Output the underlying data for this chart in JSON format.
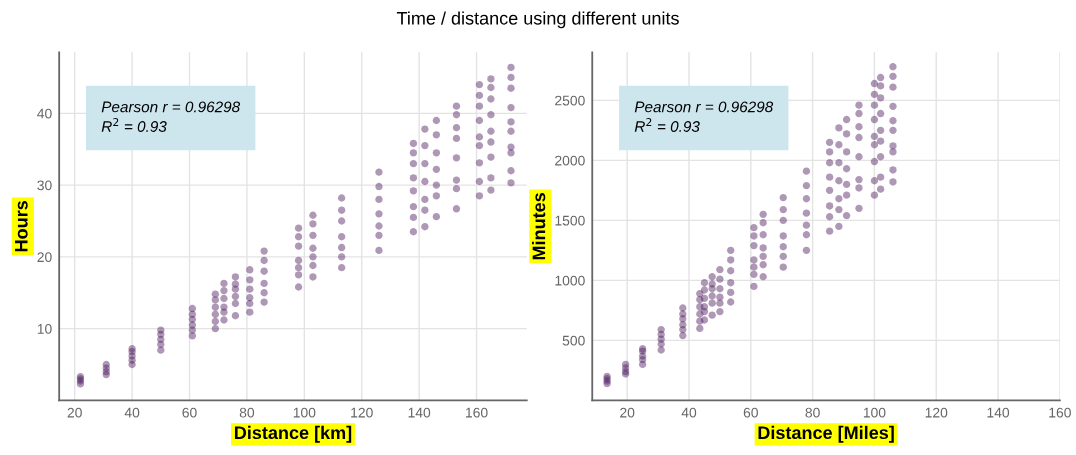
{
  "chart_data": [
    {
      "type": "scatter",
      "title": "Time / distance using different units",
      "xlabel": "Distance [km]",
      "ylabel": "Hours",
      "xlim": [
        14.6,
        177.5
      ],
      "ylim": [
        0,
        48.5
      ],
      "xticks": [
        20,
        40,
        60,
        80,
        100,
        120,
        140,
        160
      ],
      "yticks": [
        10,
        20,
        30,
        40
      ],
      "grid": true,
      "annotations": [
        "Pearson r = 0.96298\nR$^{2}$ = 0.93"
      ],
      "series": [
        {
          "color": "#4b1a5e",
          "x": [
            22,
            22,
            22,
            22,
            31,
            31,
            31,
            31,
            40,
            40,
            40,
            40,
            40,
            50,
            50,
            50,
            50,
            50,
            61,
            61,
            61,
            61,
            61,
            61,
            69,
            69,
            69,
            69,
            69,
            69,
            72,
            72,
            72,
            72,
            72,
            72,
            76,
            76,
            76,
            76,
            76,
            76,
            81,
            81,
            81,
            81,
            81,
            81,
            86,
            86,
            86,
            86,
            86,
            86,
            98,
            98,
            98,
            98,
            98,
            98,
            98,
            103,
            103,
            103,
            103,
            103,
            103,
            103,
            113,
            113,
            113,
            113,
            113,
            113,
            113,
            126,
            126,
            126,
            126,
            126,
            126,
            126,
            138,
            138,
            138,
            138,
            138,
            138,
            138,
            138,
            142,
            142,
            142,
            142,
            142,
            142,
            142,
            146,
            146,
            146,
            146,
            146,
            146,
            146,
            153,
            153,
            153,
            153,
            153,
            153,
            153,
            153,
            161,
            161,
            161,
            161,
            161,
            161,
            161,
            161,
            161,
            165,
            165,
            165,
            165,
            165,
            165,
            165,
            165,
            165,
            172,
            172,
            172,
            172,
            172,
            172,
            172,
            172,
            172,
            172
          ],
          "values": [
            2.3,
            2.7,
            3.0,
            3.3,
            3.6,
            4.0,
            4.5,
            5.0,
            5.0,
            5.6,
            6.2,
            6.8,
            7.2,
            7.0,
            7.8,
            8.5,
            9.2,
            9.8,
            9.0,
            9.8,
            10.5,
            11.3,
            12.0,
            12.8,
            10.0,
            11.0,
            12.0,
            13.0,
            14.0,
            14.8,
            11.2,
            12.3,
            13.0,
            14.2,
            15.3,
            16.3,
            11.8,
            13.5,
            14.5,
            15.5,
            16.2,
            17.2,
            12.3,
            13.5,
            14.3,
            15.5,
            16.8,
            18.2,
            13.7,
            15.0,
            16.3,
            18.0,
            19.5,
            20.8,
            15.8,
            17.5,
            18.5,
            19.5,
            21.5,
            22.8,
            24.0,
            17.2,
            18.8,
            20.0,
            21.2,
            23.0,
            24.6,
            25.8,
            18.5,
            20.0,
            21.3,
            22.8,
            25.0,
            26.5,
            28.2,
            20.9,
            23.0,
            24.3,
            26.0,
            28.0,
            29.8,
            31.8,
            23.5,
            25.5,
            27.0,
            29.2,
            31.0,
            33.0,
            34.5,
            35.8,
            24.2,
            26.5,
            28.0,
            30.5,
            33.0,
            35.5,
            37.8,
            25.6,
            28.5,
            30.0,
            32.2,
            34.5,
            37.0,
            39.0,
            26.7,
            29.5,
            30.7,
            33.8,
            36.5,
            38.0,
            39.8,
            41.0,
            28.5,
            30.5,
            33.1,
            35.5,
            36.7,
            39.0,
            41.0,
            42.5,
            44.0,
            29.3,
            31.0,
            33.9,
            36.0,
            37.5,
            39.8,
            42.0,
            43.6,
            44.8,
            30.3,
            32.0,
            34.5,
            35.3,
            37.5,
            38.8,
            40.8,
            43.5,
            45.0,
            46.4
          ]
        }
      ]
    },
    {
      "type": "scatter",
      "xlabel": "Distance [Miles]",
      "ylabel": "Minutes",
      "xlim": [
        8.7,
        160
      ],
      "ylim": [
        0,
        2900
      ],
      "xticks": [
        20,
        40,
        60,
        80,
        100,
        120,
        140,
        160
      ],
      "yticks": [
        500,
        1000,
        1500,
        2000,
        2500
      ],
      "grid": true,
      "annotations": [
        "Pearson r = 0.96298\nR$^{2}$ = 0.93"
      ],
      "series": [
        {
          "color": "#4b1a5e",
          "x": [
            13.5,
            13.5,
            13.5,
            13.5,
            19.5,
            19.5,
            19.5,
            19.5,
            25,
            25,
            25,
            25,
            25,
            31,
            31,
            31,
            31,
            31,
            38,
            38,
            38,
            38,
            38,
            38,
            43.5,
            43.5,
            43.5,
            43.5,
            43.5,
            43.5,
            45,
            45,
            45,
            45,
            45,
            45,
            47.5,
            47.5,
            47.5,
            47.5,
            47.5,
            47.5,
            50,
            50,
            50,
            50,
            50,
            50,
            53.5,
            53.5,
            53.5,
            53.5,
            53.5,
            53.5,
            61,
            61,
            61,
            61,
            61,
            61,
            61,
            64,
            64,
            64,
            64,
            64,
            64,
            64,
            70.5,
            70.5,
            70.5,
            70.5,
            70.5,
            70.5,
            70.5,
            78,
            78,
            78,
            78,
            78,
            78,
            78,
            85.5,
            85.5,
            85.5,
            85.5,
            85.5,
            85.5,
            85.5,
            85.5,
            88.5,
            88.5,
            88.5,
            88.5,
            88.5,
            88.5,
            88.5,
            91,
            91,
            91,
            91,
            91,
            91,
            91,
            95,
            95,
            95,
            95,
            95,
            95,
            95,
            95,
            100,
            100,
            100,
            100,
            100,
            100,
            100,
            100,
            100,
            102,
            102,
            102,
            102,
            102,
            102,
            102,
            102,
            102,
            106,
            106,
            106,
            106,
            106,
            106,
            106,
            106,
            106,
            106
          ],
          "values": [
            140,
            160,
            180,
            200,
            220,
            240,
            270,
            300,
            300,
            340,
            370,
            410,
            430,
            420,
            470,
            510,
            550,
            590,
            540,
            590,
            630,
            680,
            720,
            770,
            600,
            660,
            720,
            780,
            840,
            890,
            670,
            740,
            780,
            850,
            920,
            980,
            710,
            810,
            870,
            930,
            970,
            1030,
            740,
            810,
            860,
            930,
            1010,
            1090,
            820,
            900,
            980,
            1080,
            1170,
            1250,
            950,
            1050,
            1110,
            1170,
            1290,
            1370,
            1440,
            1030,
            1130,
            1200,
            1270,
            1380,
            1480,
            1550,
            1110,
            1200,
            1280,
            1370,
            1500,
            1590,
            1690,
            1250,
            1380,
            1460,
            1560,
            1680,
            1790,
            1910,
            1410,
            1530,
            1620,
            1750,
            1860,
            1980,
            2070,
            2150,
            1450,
            1590,
            1680,
            1830,
            1980,
            2130,
            2270,
            1540,
            1710,
            1800,
            1930,
            2070,
            2220,
            2340,
            1600,
            1770,
            1840,
            2030,
            2190,
            2280,
            2390,
            2460,
            1710,
            1830,
            1990,
            2130,
            2200,
            2340,
            2460,
            2550,
            2640,
            1760,
            1860,
            2030,
            2160,
            2250,
            2390,
            2520,
            2620,
            2690,
            1820,
            1920,
            2070,
            2120,
            2250,
            2330,
            2450,
            2610,
            2700,
            2780
          ]
        }
      ]
    }
  ]
}
